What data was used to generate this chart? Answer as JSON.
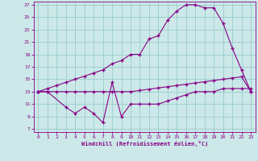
{
  "xlabel": "Windchill (Refroidissement éolien,°C)",
  "bg_color": "#cce8e8",
  "line_color": "#880088",
  "grid_color": "#99cccc",
  "xlim": [
    -0.5,
    23.5
  ],
  "ylim": [
    6.5,
    27.5
  ],
  "yticks": [
    7,
    9,
    11,
    13,
    15,
    17,
    19,
    21,
    23,
    25,
    27
  ],
  "xticks": [
    0,
    1,
    2,
    3,
    4,
    5,
    6,
    7,
    8,
    9,
    10,
    11,
    12,
    13,
    14,
    15,
    16,
    17,
    18,
    19,
    20,
    21,
    22,
    23
  ],
  "line1_x": [
    0,
    1,
    2,
    3,
    4,
    5,
    6,
    7,
    8,
    9,
    10,
    11,
    12,
    13,
    14,
    15,
    16,
    17,
    18,
    19,
    20,
    21,
    22,
    23
  ],
  "line1_y": [
    13,
    13,
    13,
    13,
    13,
    13,
    13,
    13,
    13,
    13,
    13,
    13.2,
    13.4,
    13.6,
    13.8,
    14.0,
    14.2,
    14.4,
    14.6,
    14.8,
    15.0,
    15.2,
    15.4,
    13.0
  ],
  "line2_x": [
    0,
    1,
    3,
    4,
    5,
    6,
    7,
    8,
    9,
    10,
    11,
    12,
    13,
    14,
    15,
    16,
    17,
    18,
    19,
    20,
    21,
    22,
    23
  ],
  "line2_y": [
    13,
    13,
    10.5,
    9.5,
    10.5,
    9.5,
    8.0,
    14.5,
    9.0,
    11.0,
    11.0,
    11.0,
    11.0,
    11.5,
    12.0,
    12.5,
    13.0,
    13.0,
    13.0,
    13.5,
    13.5,
    13.5,
    13.5
  ],
  "line3_x": [
    0,
    1,
    2,
    3,
    4,
    5,
    6,
    7,
    8,
    9,
    10,
    11,
    12,
    13,
    14,
    15,
    16,
    17,
    18,
    19,
    20,
    21,
    22,
    23
  ],
  "line3_y": [
    13,
    13.5,
    14,
    14.5,
    15,
    15.5,
    16,
    16.5,
    17.5,
    18,
    19,
    19,
    21.5,
    22,
    24.5,
    26,
    27,
    27,
    26.5,
    26.5,
    24,
    20,
    16.5,
    13
  ]
}
